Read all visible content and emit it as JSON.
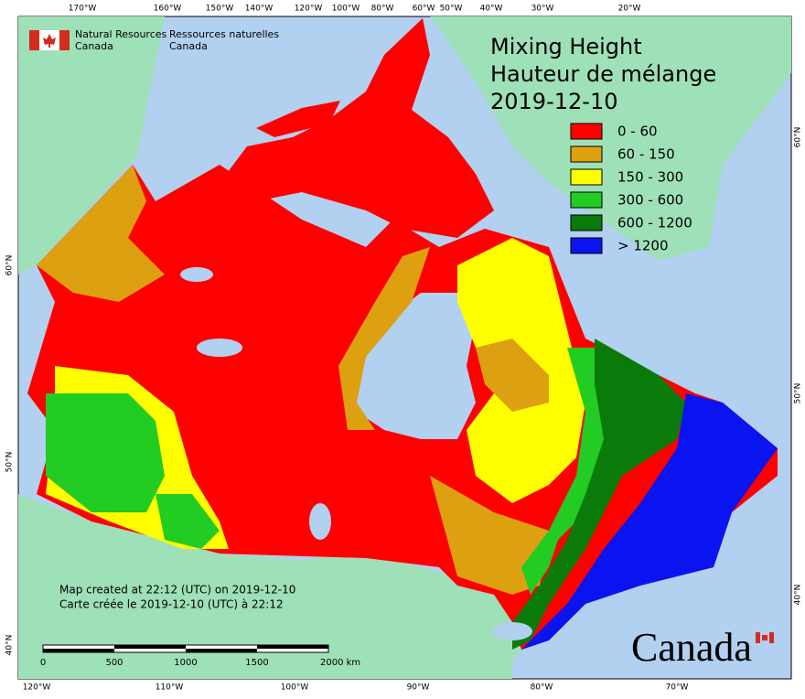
{
  "header": {
    "agency_en": [
      "Natural Resources",
      "Canada"
    ],
    "agency_fr": [
      "Ressources naturelles",
      "Canada"
    ]
  },
  "title": [
    "Mixing Height",
    "Hauteur de mélange",
    "2019-12-10"
  ],
  "legend": [
    {
      "label": "0 - 60",
      "color": "#ff0000"
    },
    {
      "label": "60 - 150",
      "color": "#dda010"
    },
    {
      "label": "150 - 300",
      "color": "#ffff00"
    },
    {
      "label": "300 - 600",
      "color": "#22cc22"
    },
    {
      "label": "600 - 1200",
      "color": "#0a7a0a"
    },
    {
      "label": "> 1200",
      "color": "#0a14f0"
    }
  ],
  "credits": [
    "Map created at 22:12 (UTC) on 2019-12-10",
    "Carte créée le 2019-12-10 (UTC) à 22:12"
  ],
  "scale_bar": [
    "0",
    "500",
    "1000",
    "1500",
    "2000  km"
  ],
  "graticule": {
    "top": [
      "170°W",
      "160°W",
      "150°W",
      "140°W",
      "120°W",
      "100°W",
      "80°W",
      "60°W",
      "50°W",
      "40°W",
      "30°W",
      "20°W"
    ],
    "bottom": [
      "120°W",
      "110°W",
      "100°W",
      "90°W",
      "80°W",
      "70°W"
    ],
    "left": [
      "60°N",
      "50°N",
      "40°N"
    ],
    "right": [
      "60°N",
      "50°N",
      "40°N"
    ]
  },
  "wordmark": "Canada"
}
